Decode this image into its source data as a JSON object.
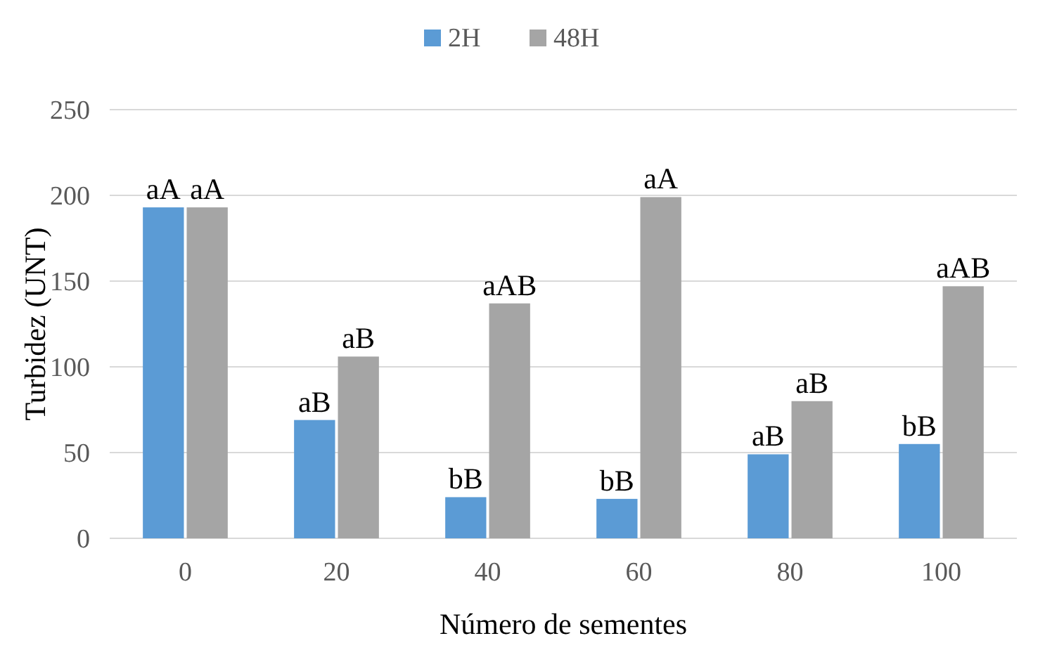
{
  "chart_data": {
    "type": "bar",
    "xlabel": "Número de sementes",
    "ylabel": "Turbidez (UNT)",
    "categories": [
      "0",
      "20",
      "40",
      "60",
      "80",
      "100"
    ],
    "series": [
      {
        "name": "2H",
        "color": "#5b9bd5",
        "values": [
          193,
          69,
          24,
          23,
          49,
          55
        ]
      },
      {
        "name": "48H",
        "color": "#a5a5a5",
        "values": [
          193,
          106,
          137,
          199,
          80,
          147
        ]
      }
    ],
    "ylim": [
      0,
      250
    ],
    "yticks": [
      0,
      50,
      100,
      150,
      200,
      250
    ],
    "grid": "y",
    "legend": "top",
    "annotations": [
      {
        "text": "aA",
        "x": "0",
        "y": 193
      },
      {
        "text": "aA",
        "x": "0",
        "y": 193
      },
      {
        "text": "aB",
        "x": "20",
        "y": 69
      },
      {
        "text": "aB",
        "x": "20",
        "y": 106
      },
      {
        "text": "bB",
        "x": "40",
        "y": 24
      },
      {
        "text": "aAB",
        "x": "40",
        "y": 137
      },
      {
        "text": "bB",
        "x": "60",
        "y": 23
      },
      {
        "text": "aA",
        "x": "60",
        "y": 199
      },
      {
        "text": "aB",
        "x": "80",
        "y": 49
      },
      {
        "text": "aB",
        "x": "80",
        "y": 80
      },
      {
        "text": "bB",
        "x": "100",
        "y": 55
      },
      {
        "text": "aAB",
        "x": "100",
        "y": 147
      }
    ]
  }
}
